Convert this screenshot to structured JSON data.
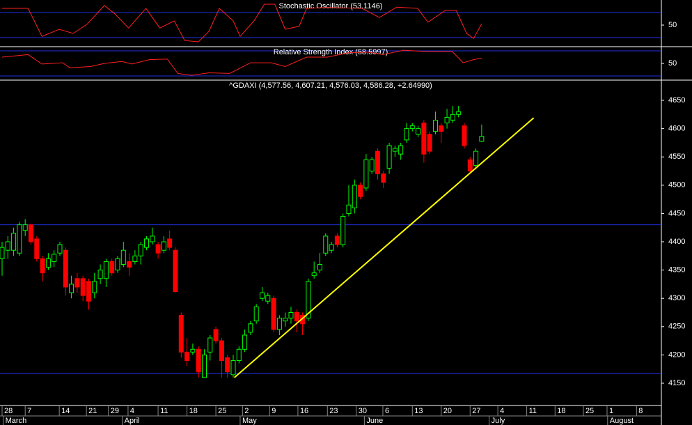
{
  "chart_data": [
    {
      "type": "line",
      "title": "Stochastic Oscillator (53.1146)",
      "x": [
        0,
        4.5,
        6.9,
        9.9,
        12.3,
        14.7,
        17.7,
        19.5,
        21.9,
        24.9,
        27.3,
        29.8,
        31.6,
        34,
        35.8,
        37.6,
        40,
        41.2,
        43.6,
        45.4,
        47.2,
        49,
        51.4,
        52.7,
        56.3,
        62.3,
        65.3,
        68.3,
        71.9,
        73.7,
        76.7,
        78.6,
        80.4,
        81.6,
        83
      ],
      "series": [
        {
          "color": "#ff2020",
          "values": [
            90,
            90,
            23,
            40,
            30,
            52,
            97,
            77,
            43,
            90,
            43,
            60,
            13,
            10,
            35,
            90,
            60,
            23,
            60,
            100,
            100,
            40,
            47,
            90,
            92,
            90,
            68,
            93,
            90,
            57,
            85,
            85,
            30,
            18,
            53.1146
          ]
        }
      ],
      "xlim": [
        -0.36,
        114.1
      ],
      "ylim": [
        0,
        110
      ],
      "yticks": [
        50
      ],
      "levels": [
        20,
        80
      ],
      "level_color": "#2030e0"
    },
    {
      "type": "line",
      "title": "Relative Strength Index (58.5997)",
      "x": [
        0,
        4.5,
        6.9,
        10.5,
        11.7,
        15.3,
        17.7,
        20.7,
        22.5,
        25.5,
        28.6,
        30.4,
        32.8,
        35.8,
        39.4,
        43,
        46.6,
        49,
        52.7,
        56.3,
        59.9,
        63.5,
        65.9,
        69.5,
        73.1,
        77.9,
        79.8,
        81.6,
        83
      ],
      "series": [
        {
          "color": "#ff2020",
          "values": [
            60,
            64,
            49,
            51,
            43,
            45,
            50,
            53,
            49,
            56,
            57,
            34,
            31,
            35,
            34,
            51,
            51,
            45,
            60,
            60,
            67,
            68,
            64,
            71,
            69,
            69,
            51,
            56,
            58.5997
          ]
        }
      ],
      "xlim": [
        -0.36,
        114.1
      ],
      "ylim": [
        24.4,
        75.6
      ],
      "yticks": [
        50
      ],
      "levels": [
        30,
        70
      ],
      "level_color": "#2030e0"
    },
    {
      "type": "candlestick",
      "title": "^GDAXI (4,577.56, 4,607.21, 4,576.03, 4,586.28, +2.64990)",
      "x": [
        0,
        1,
        2,
        3,
        4,
        5,
        6,
        7,
        8,
        9,
        10,
        11,
        12,
        13,
        14,
        15,
        16,
        17,
        18,
        19,
        20,
        21,
        22,
        23,
        24,
        25,
        26,
        27,
        28,
        29,
        30,
        31,
        32,
        33,
        34,
        35,
        36,
        37,
        38,
        39,
        40,
        41,
        42,
        43,
        44,
        45,
        46,
        47,
        48,
        49,
        50,
        51,
        52,
        53,
        54,
        55,
        56,
        57,
        58,
        59,
        60,
        61,
        62,
        63,
        64,
        65,
        66,
        67,
        68,
        69,
        70,
        71,
        72,
        73,
        74,
        75,
        76,
        77,
        78,
        79,
        80,
        81,
        82,
        83
      ],
      "open": [
        4370,
        4385,
        4385,
        4380,
        4420,
        4430,
        4405,
        4370,
        4355,
        4365,
        4380,
        4385,
        4310,
        4335,
        4335,
        4330,
        4310,
        4335,
        4335,
        4365,
        4350,
        4360,
        4365,
        4365,
        4375,
        4390,
        4400,
        4395,
        4385,
        4405,
        4385,
        4270,
        4205,
        4205,
        4210,
        4160,
        4205,
        4245,
        4225,
        4195,
        4165,
        4190,
        4210,
        4240,
        4260,
        4300,
        4295,
        4300,
        4245,
        4260,
        4265,
        4275,
        4270,
        4265,
        4340,
        4350,
        4380,
        4385,
        4410,
        4395,
        4450,
        4460,
        4500,
        4495,
        4525,
        4560,
        4520,
        4530,
        4560,
        4555,
        4580,
        4600,
        4590,
        4610,
        4590,
        4595,
        4605,
        4610,
        4615,
        4625,
        4605,
        4545,
        4535,
        4577.56
      ],
      "high": [
        4400,
        4410,
        4425,
        4435,
        4440,
        4432,
        4410,
        4375,
        4380,
        4385,
        4400,
        4390,
        4340,
        4345,
        4340,
        4335,
        4345,
        4360,
        4370,
        4370,
        4375,
        4400,
        4380,
        4385,
        4400,
        4410,
        4425,
        4400,
        4410,
        4420,
        4390,
        4275,
        4230,
        4220,
        4215,
        4210,
        4235,
        4250,
        4230,
        4200,
        4200,
        4215,
        4245,
        4260,
        4290,
        4320,
        4310,
        4305,
        4270,
        4275,
        4285,
        4280,
        4275,
        4335,
        4365,
        4380,
        4415,
        4400,
        4415,
        4450,
        4500,
        4510,
        4505,
        4555,
        4550,
        4565,
        4525,
        4575,
        4570,
        4575,
        4610,
        4610,
        4605,
        4615,
        4595,
        4630,
        4610,
        4635,
        4640,
        4640,
        4610,
        4550,
        4565,
        4607.21
      ],
      "low": [
        4340,
        4370,
        4375,
        4375,
        4410,
        4395,
        4365,
        4330,
        4350,
        4355,
        4375,
        4305,
        4300,
        4310,
        4295,
        4280,
        4300,
        4325,
        4320,
        4340,
        4345,
        4355,
        4340,
        4360,
        4360,
        4385,
        4395,
        4370,
        4380,
        4385,
        4310,
        4195,
        4180,
        4200,
        4160,
        4160,
        4190,
        4220,
        4160,
        4160,
        4160,
        4185,
        4205,
        4235,
        4255,
        4295,
        4290,
        4240,
        4235,
        4250,
        4255,
        4240,
        4235,
        4260,
        4335,
        4345,
        4375,
        4380,
        4390,
        4390,
        4445,
        4450,
        4475,
        4490,
        4520,
        4510,
        4495,
        4520,
        4550,
        4545,
        4575,
        4595,
        4585,
        4540,
        4555,
        4590,
        4575,
        4600,
        4610,
        4620,
        4565,
        4520,
        4530,
        4576.03
      ],
      "close": [
        4390,
        4400,
        4415,
        4430,
        4430,
        4400,
        4370,
        4345,
        4370,
        4378,
        4395,
        4320,
        4325,
        4320,
        4305,
        4295,
        4330,
        4350,
        4365,
        4345,
        4370,
        4385,
        4355,
        4375,
        4395,
        4405,
        4410,
        4380,
        4400,
        4390,
        4312,
        4205,
        4190,
        4210,
        4170,
        4200,
        4230,
        4225,
        4190,
        4170,
        4190,
        4210,
        4235,
        4255,
        4285,
        4310,
        4305,
        4245,
        4265,
        4265,
        4275,
        4260,
        4255,
        4330,
        4345,
        4360,
        4410,
        4395,
        4395,
        4445,
        4465,
        4500,
        4480,
        4545,
        4545,
        4520,
        4505,
        4570,
        4565,
        4570,
        4600,
        4605,
        4600,
        4555,
        4560,
        4615,
        4595,
        4620,
        4625,
        4630,
        4570,
        4525,
        4560,
        4586.28
      ],
      "up_color": "#00ff00",
      "down_color": "#ff0000",
      "xlim": [
        -0.36,
        114.1
      ],
      "ylim": [
        4110.6,
        4684.5
      ],
      "yticks": [
        4150,
        4200,
        4250,
        4300,
        4350,
        4400,
        4450,
        4500,
        4550,
        4600,
        4650
      ],
      "xticks": [
        {
          "value": 0,
          "label": "28"
        },
        {
          "value": 4,
          "label": "7"
        },
        {
          "value": 9.9,
          "label": "14"
        },
        {
          "value": 14.6,
          "label": "21"
        },
        {
          "value": 18.4,
          "label": "29"
        },
        {
          "value": 21.8,
          "label": "4"
        },
        {
          "value": 27,
          "label": "11"
        },
        {
          "value": 32,
          "label": "18"
        },
        {
          "value": 37,
          "label": "25"
        },
        {
          "value": 41.6,
          "label": "2"
        },
        {
          "value": 46.3,
          "label": "9"
        },
        {
          "value": 51.2,
          "label": "16"
        },
        {
          "value": 56.3,
          "label": "23"
        },
        {
          "value": 61.3,
          "label": "30"
        },
        {
          "value": 65.9,
          "label": "6"
        },
        {
          "value": 71,
          "label": "13"
        },
        {
          "value": 76,
          "label": "20"
        },
        {
          "value": 81,
          "label": "27"
        },
        {
          "value": 85.8,
          "label": "4"
        },
        {
          "value": 90.8,
          "label": "11"
        },
        {
          "value": 95.7,
          "label": "18"
        },
        {
          "value": 100.6,
          "label": "25"
        },
        {
          "value": 104.7,
          "label": "1"
        },
        {
          "value": 109.8,
          "label": "8"
        }
      ],
      "months": [
        {
          "value": 0.2,
          "label": "March"
        },
        {
          "value": 20.8,
          "label": "April"
        },
        {
          "value": 41.2,
          "label": "May"
        },
        {
          "value": 62.7,
          "label": "June"
        },
        {
          "value": 84.3,
          "label": "July"
        },
        {
          "value": 104.8,
          "label": "August"
        }
      ],
      "hlines": [
        4430,
        4167
      ],
      "hline_color": "#2030e0",
      "trendline": {
        "x": [
          40.2,
          92
        ],
        "values": [
          4160,
          4619
        ],
        "color": "#ffff00"
      }
    }
  ]
}
